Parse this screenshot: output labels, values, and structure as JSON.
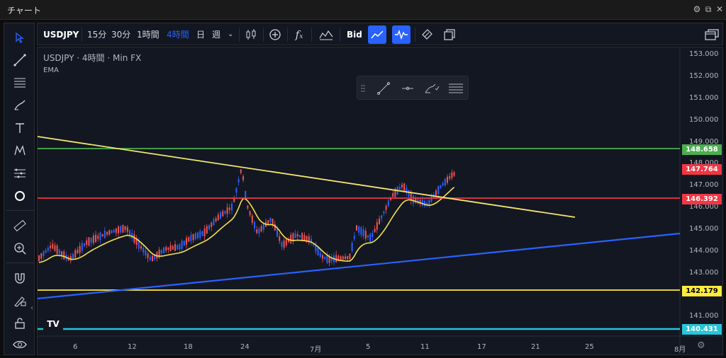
{
  "window": {
    "title": "チャート"
  },
  "toolbar": {
    "symbol": "USDJPY",
    "intervals": [
      "15分",
      "30分",
      "1時間",
      "4時間",
      "日",
      "週"
    ],
    "active_interval": "4時間",
    "price_type": "Bid"
  },
  "legend": {
    "title": "USDJPY · 4時間 · Min FX",
    "indicator": "EMA"
  },
  "colors": {
    "background": "#131722",
    "candle_up": "#2962ff",
    "candle_down": "#ef5350",
    "ema": "#f5e050",
    "green_level": "#4caf50",
    "red_level": "#f23645",
    "yellow_level": "#ffeb3b",
    "cyan_level": "#26c6da",
    "trend_up": "#2962ff",
    "trend_down": "#f5e66e"
  },
  "price_axis": {
    "ticks": [
      "153.000",
      "152.000",
      "151.000",
      "150.000",
      "149.000",
      "148.000",
      "147.000",
      "146.000",
      "145.000",
      "144.000",
      "143.000",
      "141.000"
    ],
    "tags": [
      {
        "label": "148.658",
        "color": "#4caf50",
        "value": 148.658
      },
      {
        "label": "147.764",
        "color": "#f23645",
        "value": 147.764
      },
      {
        "label": "146.392",
        "color": "#f23645",
        "value": 146.392
      },
      {
        "label": "142.179",
        "color": "#ffeb3b",
        "value": 142.179,
        "text_color": "#000000"
      },
      {
        "label": "140.431",
        "color": "#26c6da",
        "value": 140.431
      }
    ]
  },
  "date_axis": {
    "ticks": [
      "6",
      "12",
      "18",
      "24",
      "7月",
      "5",
      "11",
      "17",
      "21",
      "25",
      "8月"
    ]
  },
  "logo_text": "TV",
  "icons": [
    "cursor-icon",
    "trendline-icon",
    "fib-icon",
    "brush-icon",
    "text-icon",
    "pattern-icon",
    "forecast-icon",
    "circle-icon",
    "ruler-icon",
    "zoom-icon",
    "magnet-icon",
    "lock-draw-icon",
    "lock-icon",
    "eye-icon"
  ]
}
